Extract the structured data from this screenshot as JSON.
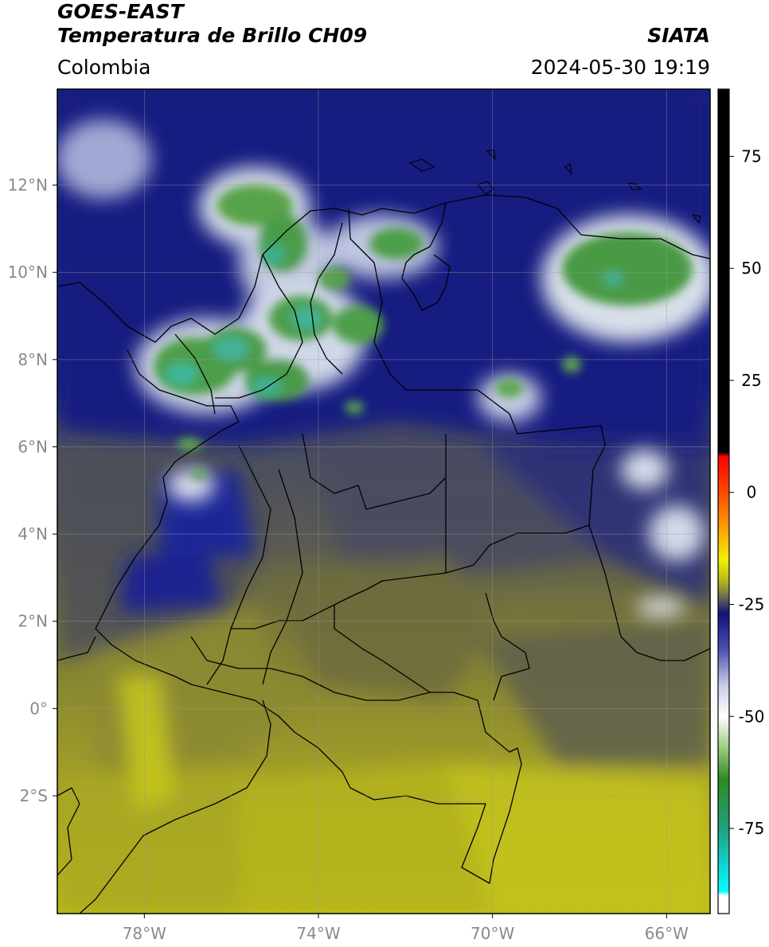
{
  "header": {
    "title_line1": "GOES-EAST",
    "title_line2": "Temperatura de Brillo CH09",
    "region": "Colombia",
    "source": "SIATA",
    "timestamp": "2024-05-30 19:19"
  },
  "map": {
    "lon_range": [
      -80,
      -65
    ],
    "lat_range": [
      -4.7,
      14.2
    ],
    "lat_ticks": [
      {
        "value": 12,
        "label": "12°N"
      },
      {
        "value": 10,
        "label": "10°N"
      },
      {
        "value": 8,
        "label": "8°N"
      },
      {
        "value": 6,
        "label": "6°N"
      },
      {
        "value": 4,
        "label": "4°N"
      },
      {
        "value": 2,
        "label": "2°N"
      },
      {
        "value": 0,
        "label": "0°"
      },
      {
        "value": -2,
        "label": "2°S"
      }
    ],
    "lon_ticks": [
      {
        "value": -78,
        "label": "78°W"
      },
      {
        "value": -74,
        "label": "74°W"
      },
      {
        "value": -70,
        "label": "70°W"
      },
      {
        "value": -66,
        "label": "66°W"
      }
    ],
    "gridlines": true,
    "colors": {
      "warm_south": "#b3b31c",
      "mid_olive": "#7d7a36",
      "grey_dark": "#4d4f5a",
      "navy": "#1a1f86",
      "white_cloud": "#e6ecf2",
      "green_cloud": "#4e9c43",
      "teal_core": "#3fb7a0",
      "border": "#000000"
    }
  },
  "colorbar": {
    "ticks": [
      {
        "value": 75,
        "label": "75"
      },
      {
        "value": 50,
        "label": "50"
      },
      {
        "value": 25,
        "label": "25"
      },
      {
        "value": 0,
        "label": "0"
      },
      {
        "value": -25,
        "label": "-25"
      },
      {
        "value": -50,
        "label": "-50"
      },
      {
        "value": -75,
        "label": "-75"
      }
    ],
    "range": [
      -94,
      90
    ],
    "stops": [
      {
        "value": 90,
        "color": "#000000"
      },
      {
        "value": 9,
        "color": "#000000"
      },
      {
        "value": 8,
        "color": "#ff0000"
      },
      {
        "value": 0,
        "color": "#ff4a00"
      },
      {
        "value": -8,
        "color": "#ffa000"
      },
      {
        "value": -15,
        "color": "#f0f000"
      },
      {
        "value": -20,
        "color": "#b3b31c"
      },
      {
        "value": -24,
        "color": "#5a5a5a"
      },
      {
        "value": -27,
        "color": "#12127a"
      },
      {
        "value": -35,
        "color": "#4c50b0"
      },
      {
        "value": -43,
        "color": "#c8cce8"
      },
      {
        "value": -50,
        "color": "#ffffff"
      },
      {
        "value": -57,
        "color": "#9ccc80"
      },
      {
        "value": -64,
        "color": "#2e8a22"
      },
      {
        "value": -75,
        "color": "#20a080"
      },
      {
        "value": -84,
        "color": "#10d8d8"
      },
      {
        "value": -89,
        "color": "#00ffff"
      },
      {
        "value": -90,
        "color": "#ffffff"
      },
      {
        "value": -94,
        "color": "#ffffff"
      }
    ]
  }
}
